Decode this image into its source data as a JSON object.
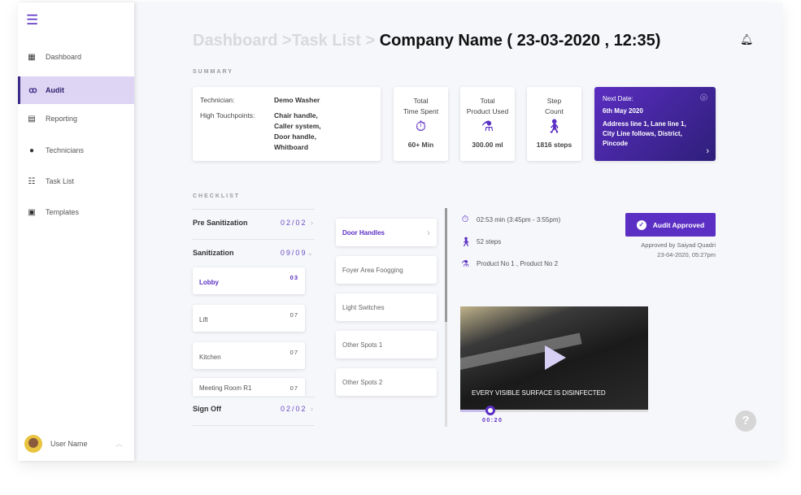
{
  "sidebar": {
    "items": [
      {
        "icon": "dashboard-icon",
        "label": "Dashboard"
      },
      {
        "icon": "glasses-icon",
        "label": "Audit",
        "active": true
      },
      {
        "icon": "report-icon",
        "label": "Reporting"
      },
      {
        "icon": "location-pin-icon",
        "label": "Technicians"
      },
      {
        "icon": "list-icon",
        "label": "Task List"
      },
      {
        "icon": "template-icon",
        "label": "Templates"
      }
    ],
    "user": "User Name"
  },
  "header": {
    "crumb1": "Dashboard >",
    "crumb2": "Task List >",
    "title": "Company Name ( 23-03-2020 , 12:35)"
  },
  "summary": {
    "label": "SUMMARY",
    "technician_label": "Technician:",
    "technician": "Demo Washer",
    "touch_label": "High Touchpoints:",
    "touchpoints": [
      "Chair handle,",
      "Caller system,",
      "Door handle,",
      "Whitboard"
    ],
    "stats": [
      {
        "l1": "Total",
        "l2": "Time Spent",
        "value": "60+ Min",
        "icon": "stopwatch-icon"
      },
      {
        "l1": "Total",
        "l2": "Product Used",
        "value": "300.00 ml",
        "icon": "spray-bottle-icon"
      },
      {
        "l1": "Step",
        "l2": "Count",
        "value": "1816 steps",
        "icon": "walking-icon"
      }
    ],
    "next": {
      "label": "Next Date:",
      "date": "6th May 2020",
      "address": "Address line 1, Lane line 1, City Line follows, District, Pincode"
    }
  },
  "checklist": {
    "label": "CHECKLIST",
    "sections": [
      {
        "name": "Pre Sanitization",
        "count": "02/02"
      },
      {
        "name": "Sanitization",
        "count": "09/09"
      },
      {
        "name": "Sign Off",
        "count": "02/02"
      }
    ],
    "areas": [
      {
        "name": "Lobby",
        "count": "03"
      },
      {
        "name": "Lift",
        "count": "07"
      },
      {
        "name": "Kitchen",
        "count": "07"
      },
      {
        "name": "Meeting Room R1",
        "count": "07"
      }
    ],
    "tasks": [
      "Door Handles",
      "Foyer Area Foogging",
      "Light Switches",
      "Other Spots 1",
      "Other Spots 2"
    ]
  },
  "detail": {
    "time": "02:53 min (3:45pm - 3:55pm)",
    "steps": "52 steps",
    "products": "Product No 1 , Product No 2",
    "approve_label": "Audit Approved",
    "approved_by": "Approved by Saiyad Quadri",
    "approved_at": "23-04-2020, 05:27pm",
    "video_caption": "EVERY VISIBLE SURFACE IS DISINFECTED",
    "video_time": "00:20",
    "video_progress": 0.16
  },
  "colors": {
    "accent": "#5b2fc4",
    "active_bg": "#ddd5f3"
  }
}
